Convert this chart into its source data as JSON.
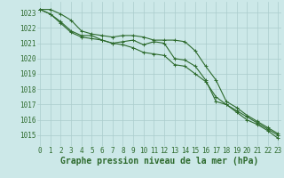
{
  "hours": [
    0,
    1,
    2,
    3,
    4,
    5,
    6,
    7,
    8,
    9,
    10,
    11,
    12,
    13,
    14,
    15,
    16,
    17,
    18,
    19,
    20,
    21,
    22,
    23
  ],
  "line_top": [
    1023.2,
    1023.2,
    1022.9,
    1022.5,
    1021.8,
    1021.6,
    1021.5,
    1021.4,
    1021.5,
    1021.5,
    1021.4,
    1021.2,
    1021.2,
    1021.2,
    1021.1,
    1020.5,
    1019.5,
    1018.6,
    1017.2,
    1016.8,
    1016.3,
    1015.9,
    1015.5,
    1015.1
  ],
  "line_mid": [
    1023.2,
    1022.9,
    1022.4,
    1021.8,
    1021.5,
    1021.5,
    1021.2,
    1021.0,
    1021.1,
    1021.2,
    1020.9,
    1021.1,
    1021.0,
    1020.0,
    1019.9,
    1019.5,
    1018.6,
    1017.2,
    1017.0,
    1016.6,
    1016.2,
    1015.8,
    1015.4,
    1015.0
  ],
  "line_bot": [
    1023.2,
    1022.9,
    1022.3,
    1021.7,
    1021.4,
    1021.3,
    1021.2,
    1021.0,
    1020.9,
    1020.7,
    1020.4,
    1020.3,
    1020.2,
    1019.6,
    1019.5,
    1019.0,
    1018.5,
    1017.5,
    1017.0,
    1016.5,
    1016.0,
    1015.7,
    1015.3,
    1014.8
  ],
  "bg_color": "#cce8e8",
  "grid_color": "#aacccc",
  "line_color": "#2d6a2d",
  "ylabel_ticks": [
    1015,
    1016,
    1017,
    1018,
    1019,
    1020,
    1021,
    1022,
    1023
  ],
  "ylim": [
    1014.3,
    1023.7
  ],
  "xlim": [
    -0.3,
    23.3
  ],
  "xlabel": "Graphe pression niveau de la mer (hPa)",
  "axis_fontsize": 5.5,
  "xlabel_fontsize": 7.0
}
